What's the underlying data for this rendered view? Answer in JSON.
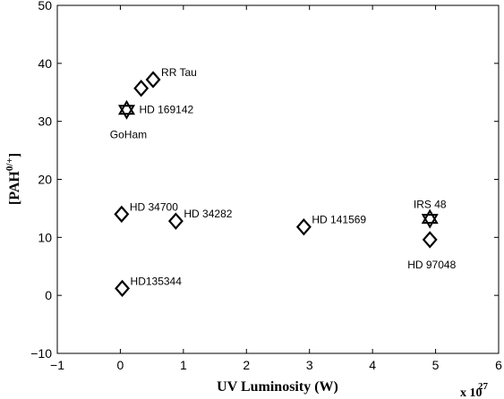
{
  "chart_data": {
    "type": "scatter",
    "xlabel": "UV Luminosity (W)",
    "x_multiplier_base": "x 10",
    "x_multiplier_exp": "27",
    "ylabel_main": "[PAH",
    "ylabel_sup": "0/+",
    "ylabel_close": "]",
    "xlim": [
      -1,
      6
    ],
    "ylim": [
      -10,
      50
    ],
    "x_ticks": [
      -1,
      0,
      1,
      2,
      3,
      4,
      5,
      6
    ],
    "x_tick_labels": [
      "−1",
      "0",
      "1",
      "2",
      "3",
      "4",
      "5",
      "6"
    ],
    "y_ticks": [
      -10,
      0,
      10,
      20,
      30,
      40,
      50
    ],
    "y_tick_labels": [
      "−10",
      "0",
      "10",
      "20",
      "30",
      "40",
      "50"
    ],
    "grid": false,
    "points": [
      {
        "x": 0.33,
        "y": 35.7,
        "marker": "diamond"
      },
      {
        "x": 0.52,
        "y": 37.2,
        "marker": "diamond",
        "label": "RR Tau",
        "label_pos": "upper-right"
      },
      {
        "x": 0.1,
        "y": 32.0,
        "marker": "star",
        "label": "HD 169142",
        "label_pos": "right"
      },
      {
        "x": 0.1,
        "y": 32.0,
        "marker": "none",
        "label": "GoHam",
        "label_pos": "below"
      },
      {
        "x": 0.02,
        "y": 14.0,
        "marker": "diamond",
        "label": "HD 34700",
        "label_pos": "upper-right"
      },
      {
        "x": 0.88,
        "y": 12.8,
        "marker": "diamond",
        "label": "HD 34282",
        "label_pos": "upper-right"
      },
      {
        "x": 0.03,
        "y": 1.2,
        "marker": "diamond",
        "label": "HD135344",
        "label_pos": "upper-right"
      },
      {
        "x": 2.91,
        "y": 11.8,
        "marker": "diamond",
        "label": "HD 141569",
        "label_pos": "upper-right"
      },
      {
        "x": 4.91,
        "y": 13.2,
        "marker": "star",
        "label": "IRS 48",
        "label_pos": "above"
      },
      {
        "x": 4.91,
        "y": 9.6,
        "marker": "diamond",
        "label": "HD 97048",
        "label_pos": "below"
      }
    ]
  }
}
